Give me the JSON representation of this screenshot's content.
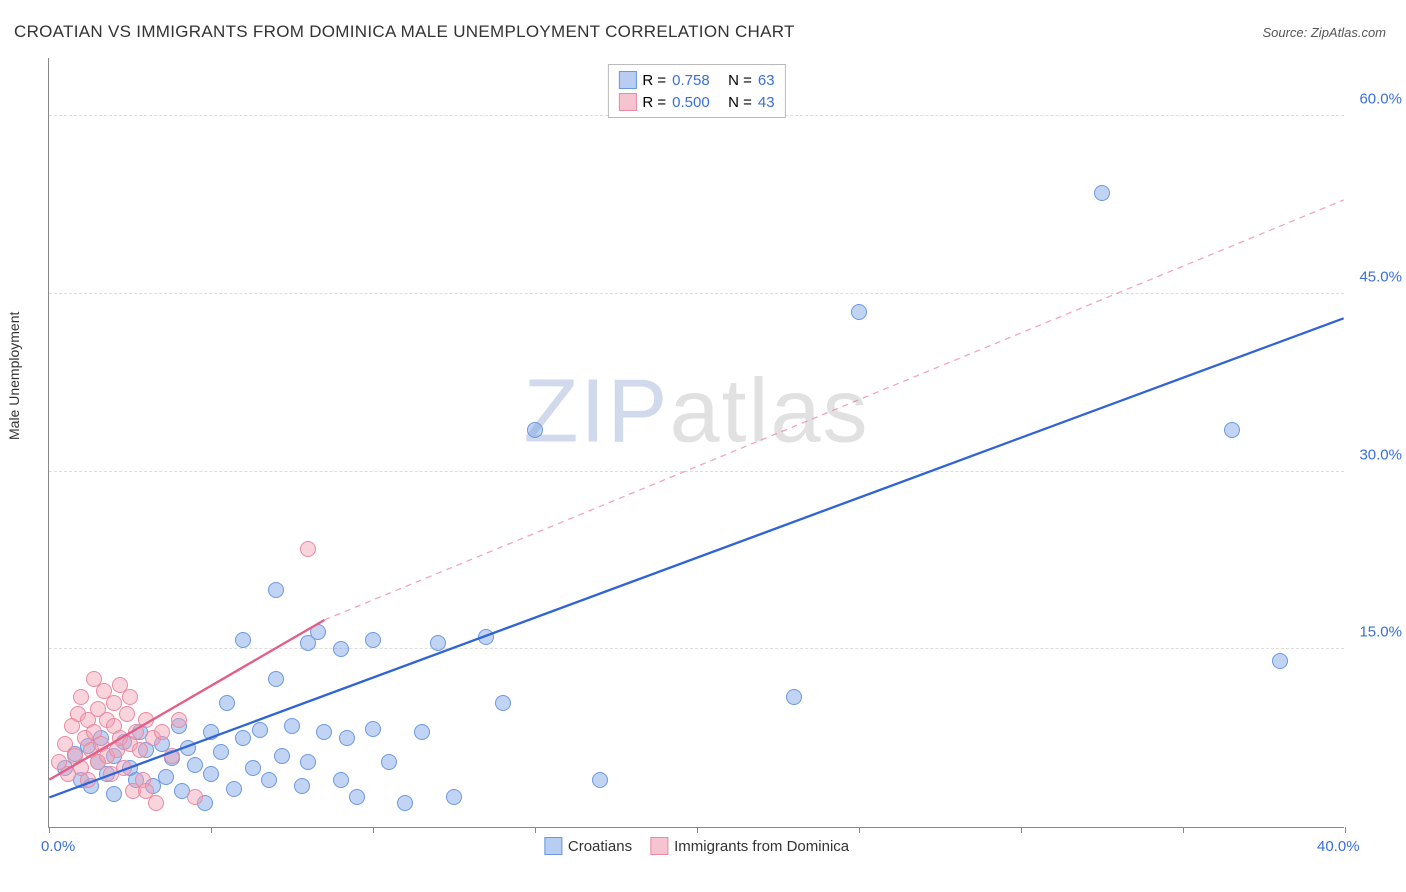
{
  "title": "CROATIAN VS IMMIGRANTS FROM DOMINICA MALE UNEMPLOYMENT CORRELATION CHART",
  "source": "Source: ZipAtlas.com",
  "y_axis_label": "Male Unemployment",
  "watermark": {
    "part1": "ZIP",
    "part2": "atlas"
  },
  "chart": {
    "type": "scatter",
    "xlim": [
      0,
      40
    ],
    "ylim": [
      0,
      65
    ],
    "x_ticks_minor": [
      0,
      5,
      10,
      15,
      20,
      25,
      30,
      35,
      40
    ],
    "x_labels": [
      {
        "value": 0,
        "label": "0.0%",
        "color": "#3a6fd8"
      },
      {
        "value": 40,
        "label": "40.0%",
        "color": "#3a6fd8"
      }
    ],
    "y_gridlines": [
      15,
      30,
      45,
      60
    ],
    "y_labels": [
      {
        "value": 15,
        "label": "15.0%",
        "color": "#3a6fd8"
      },
      {
        "value": 30,
        "label": "30.0%",
        "color": "#3a6fd8"
      },
      {
        "value": 45,
        "label": "45.0%",
        "color": "#3a6fd8"
      },
      {
        "value": 60,
        "label": "60.0%",
        "color": "#3a6fd8"
      }
    ],
    "background_color": "#ffffff",
    "grid_color": "#dddddd",
    "axis_color": "#888888",
    "marker_radius": 8,
    "marker_border_width": 1.3
  },
  "series": [
    {
      "key": "croatians",
      "label": "Croatians",
      "fill_color": "rgba(120,160,230,0.45)",
      "stroke_color": "#6a98e0",
      "swatch_fill": "#b7cef2",
      "swatch_border": "#6a98e0",
      "R": "0.758",
      "N": "63",
      "trend": {
        "x1": 0,
        "y1": 2.5,
        "x2": 40,
        "y2": 43,
        "stroke": "#2f63d6",
        "width": 2.3,
        "dash": "none"
      },
      "points": [
        [
          0.5,
          5.0
        ],
        [
          0.8,
          6.2
        ],
        [
          1.0,
          4.0
        ],
        [
          1.2,
          6.8
        ],
        [
          1.3,
          3.5
        ],
        [
          1.5,
          5.5
        ],
        [
          1.6,
          7.5
        ],
        [
          1.8,
          4.5
        ],
        [
          2.0,
          6.0
        ],
        [
          2.0,
          2.8
        ],
        [
          2.3,
          7.2
        ],
        [
          2.5,
          5.0
        ],
        [
          2.7,
          4.0
        ],
        [
          2.8,
          8.0
        ],
        [
          3.0,
          6.5
        ],
        [
          3.2,
          3.5
        ],
        [
          3.5,
          7.0
        ],
        [
          3.6,
          4.2
        ],
        [
          3.8,
          5.8
        ],
        [
          4.0,
          8.5
        ],
        [
          4.1,
          3.0
        ],
        [
          4.3,
          6.7
        ],
        [
          4.5,
          5.2
        ],
        [
          4.8,
          2.0
        ],
        [
          5.0,
          8.0
        ],
        [
          5.0,
          4.5
        ],
        [
          5.3,
          6.3
        ],
        [
          5.5,
          10.5
        ],
        [
          5.7,
          3.2
        ],
        [
          6.0,
          7.5
        ],
        [
          6.0,
          15.8
        ],
        [
          6.3,
          5.0
        ],
        [
          6.5,
          8.2
        ],
        [
          6.8,
          4.0
        ],
        [
          7.0,
          12.5
        ],
        [
          7.0,
          20.0
        ],
        [
          7.2,
          6.0
        ],
        [
          7.5,
          8.5
        ],
        [
          7.8,
          3.5
        ],
        [
          8.0,
          15.5
        ],
        [
          8.0,
          5.5
        ],
        [
          8.3,
          16.5
        ],
        [
          8.5,
          8.0
        ],
        [
          9.0,
          4.0
        ],
        [
          9.0,
          15.0
        ],
        [
          9.2,
          7.5
        ],
        [
          9.5,
          2.5
        ],
        [
          10.0,
          8.3
        ],
        [
          10.0,
          15.8
        ],
        [
          10.5,
          5.5
        ],
        [
          11.0,
          2.0
        ],
        [
          11.5,
          8.0
        ],
        [
          12.0,
          15.5
        ],
        [
          12.5,
          2.5
        ],
        [
          13.5,
          16.0
        ],
        [
          14.0,
          10.5
        ],
        [
          15.0,
          33.5
        ],
        [
          17.0,
          4.0
        ],
        [
          23.0,
          11.0
        ],
        [
          25.0,
          43.5
        ],
        [
          32.5,
          53.5
        ],
        [
          36.5,
          33.5
        ],
        [
          38.0,
          14.0
        ]
      ]
    },
    {
      "key": "dominica",
      "label": "Immigrants from Dominica",
      "fill_color": "rgba(245,160,180,0.45)",
      "stroke_color": "#e88aa2",
      "swatch_fill": "#f6c4d1",
      "swatch_border": "#e88aa2",
      "R": "0.500",
      "N": "43",
      "trend_solid": {
        "x1": 0,
        "y1": 4.0,
        "x2": 8.5,
        "y2": 17.5,
        "stroke": "#e35d85",
        "width": 2.3
      },
      "trend_dashed": {
        "x1": 8.5,
        "y1": 17.5,
        "x2": 40,
        "y2": 53,
        "stroke": "rgba(227,93,133,0.55)",
        "width": 1.3,
        "dash": "6 5"
      },
      "points": [
        [
          0.3,
          5.5
        ],
        [
          0.5,
          7.0
        ],
        [
          0.6,
          4.5
        ],
        [
          0.7,
          8.5
        ],
        [
          0.8,
          6.0
        ],
        [
          0.9,
          9.5
        ],
        [
          1.0,
          5.0
        ],
        [
          1.0,
          11.0
        ],
        [
          1.1,
          7.5
        ],
        [
          1.2,
          4.0
        ],
        [
          1.2,
          9.0
        ],
        [
          1.3,
          6.5
        ],
        [
          1.4,
          8.0
        ],
        [
          1.4,
          12.5
        ],
        [
          1.5,
          5.5
        ],
        [
          1.5,
          10.0
        ],
        [
          1.6,
          7.0
        ],
        [
          1.7,
          11.5
        ],
        [
          1.8,
          6.0
        ],
        [
          1.8,
          9.0
        ],
        [
          1.9,
          4.5
        ],
        [
          2.0,
          8.5
        ],
        [
          2.0,
          10.5
        ],
        [
          2.1,
          6.5
        ],
        [
          2.2,
          7.5
        ],
        [
          2.2,
          12.0
        ],
        [
          2.3,
          5.0
        ],
        [
          2.4,
          9.5
        ],
        [
          2.5,
          7.0
        ],
        [
          2.5,
          11.0
        ],
        [
          2.6,
          3.0
        ],
        [
          2.7,
          8.0
        ],
        [
          2.8,
          6.5
        ],
        [
          2.9,
          4.0
        ],
        [
          3.0,
          9.0
        ],
        [
          3.0,
          3.0
        ],
        [
          3.2,
          7.5
        ],
        [
          3.3,
          2.0
        ],
        [
          3.5,
          8.0
        ],
        [
          3.8,
          6.0
        ],
        [
          4.0,
          9.0
        ],
        [
          4.5,
          2.5
        ],
        [
          8.0,
          23.5
        ]
      ]
    }
  ],
  "legend_top": {
    "R_label": "R = ",
    "N_label": "N = ",
    "label_color": "#333333",
    "value_color": "#3a6fd8"
  },
  "legend_bottom_labels": {
    "s0": "Croatians",
    "s1": "Immigrants from Dominica"
  }
}
